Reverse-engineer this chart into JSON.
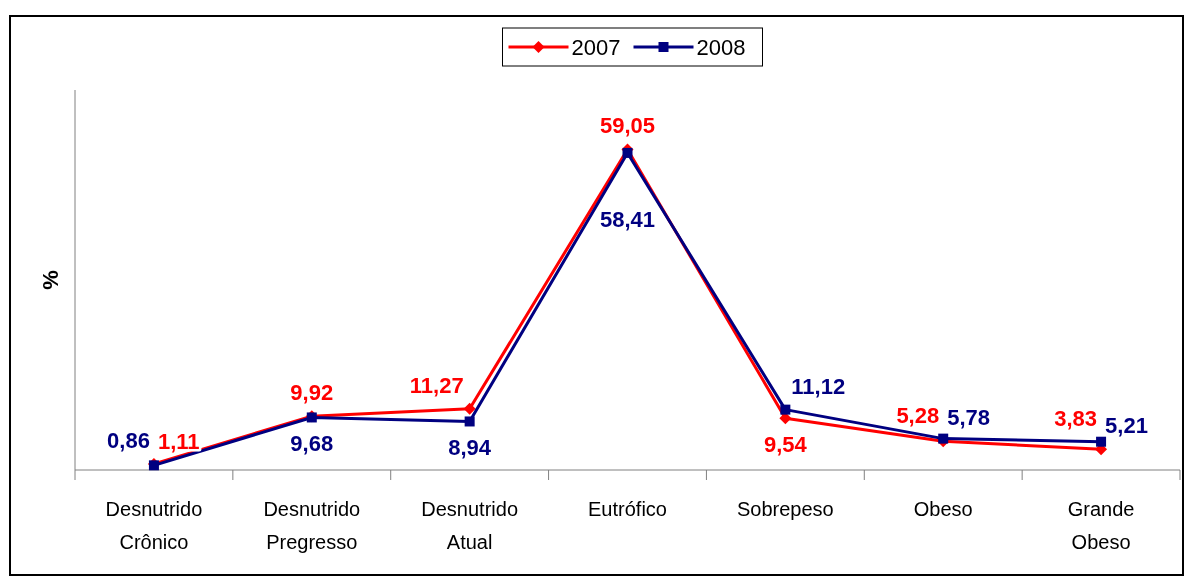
{
  "chart_data": {
    "type": "line",
    "ylabel": "%",
    "categories": [
      "Desnutrido\nCrônico",
      "Desnutrido\nPregresso",
      "Desnutrido\nAtual",
      "Eutrófico",
      "Sobrepeso",
      "Obeso",
      "Grande\nObeso"
    ],
    "ylim": [
      0,
      70
    ],
    "legend": "top",
    "tick_labels": "x",
    "series": [
      {
        "name": "2007",
        "color": "#ff0000",
        "marker": "diamond",
        "values": [
          1.11,
          9.92,
          11.27,
          59.05,
          9.54,
          5.28,
          3.83
        ],
        "value_labels": [
          "1,11",
          "9,92",
          "11,27",
          "59,05",
          "9,54",
          "5,28",
          "3,83"
        ]
      },
      {
        "name": "2008",
        "color": "#000080",
        "marker": "square",
        "values": [
          0.86,
          9.68,
          8.94,
          58.41,
          11.12,
          5.78,
          5.21
        ],
        "value_labels": [
          "0,86",
          "9,68",
          "8,94",
          "58,41",
          "11,12",
          "5,78",
          "5,21"
        ]
      }
    ]
  }
}
